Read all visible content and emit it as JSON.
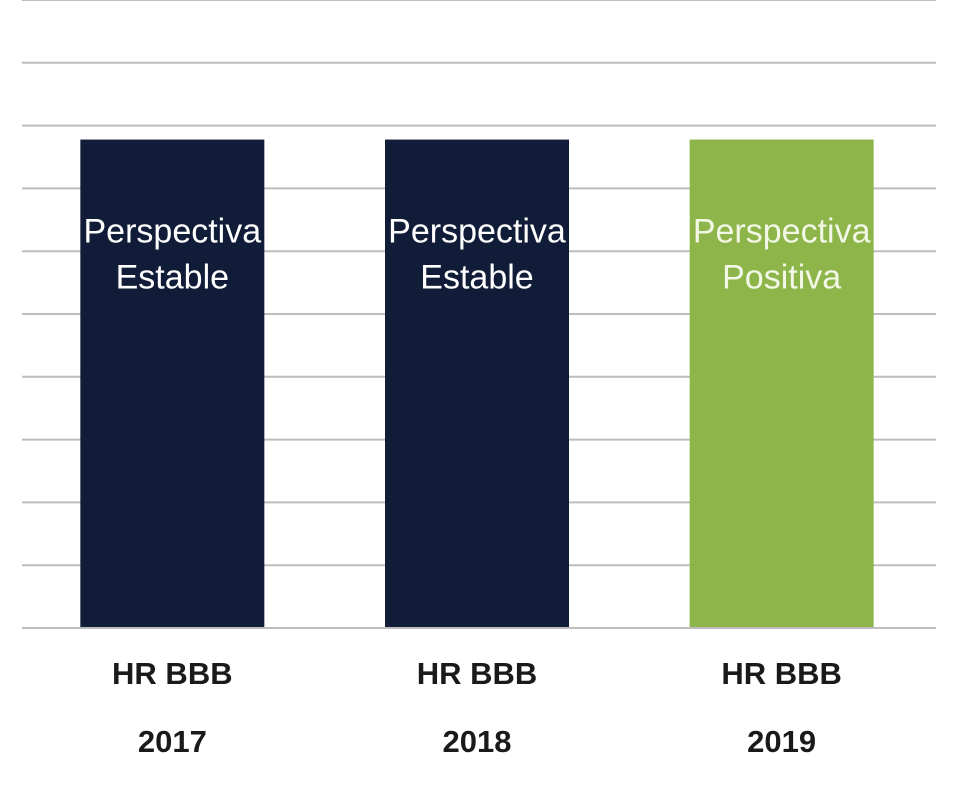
{
  "chart_data": {
    "type": "bar",
    "categories": [
      {
        "rating": "HR BBB",
        "year": "2017"
      },
      {
        "rating": "HR BBB",
        "year": "2018"
      },
      {
        "rating": "HR BBB",
        "year": "2019"
      }
    ],
    "bars": [
      {
        "label_line1": "Perspectiva",
        "label_line2": "Estable",
        "value": 7,
        "color": "#111c38",
        "text_color": "#ffffff"
      },
      {
        "label_line1": "Perspectiva",
        "label_line2": "Estable",
        "value": 7,
        "color": "#111c38",
        "text_color": "#ffffff"
      },
      {
        "label_line1": "Perspectiva",
        "label_line2": "Positiva",
        "value": 7,
        "color": "#8db54a",
        "text_color": "#f2f7e6"
      }
    ],
    "ylim": [
      0,
      9
    ],
    "grid": true,
    "gridline_count": 10,
    "gridline_color": "#bdbdbd",
    "legend": "none"
  }
}
